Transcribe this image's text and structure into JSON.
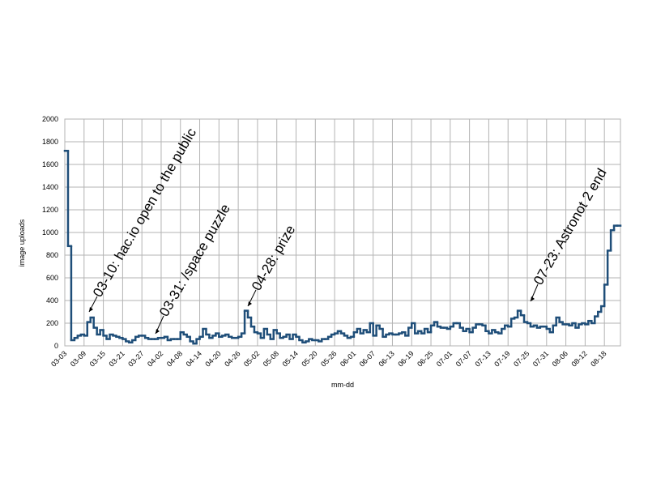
{
  "chart_data": {
    "type": "step",
    "x_label": "mm-dd",
    "y_label": "image uploads",
    "color": "#1f4e79",
    "grid": true,
    "ylim": [
      0,
      2000
    ],
    "yticks": [
      0,
      200,
      400,
      600,
      800,
      1000,
      1200,
      1400,
      1600,
      1800,
      2000
    ],
    "categories": [
      "03-03",
      null,
      null,
      null,
      null,
      null,
      "03-09",
      null,
      null,
      null,
      null,
      null,
      "03-15",
      null,
      null,
      null,
      null,
      null,
      "03-21",
      null,
      null,
      null,
      null,
      null,
      "03-27",
      null,
      null,
      null,
      null,
      null,
      "04-02",
      null,
      null,
      null,
      null,
      null,
      "04-08",
      null,
      null,
      null,
      null,
      null,
      "04-14",
      null,
      null,
      null,
      null,
      null,
      "04-20",
      null,
      null,
      null,
      null,
      null,
      "04-26",
      null,
      null,
      null,
      null,
      null,
      "05-02",
      null,
      null,
      null,
      null,
      null,
      "05-08",
      null,
      null,
      null,
      null,
      null,
      "05-14",
      null,
      null,
      null,
      null,
      null,
      "05-20",
      null,
      null,
      null,
      null,
      null,
      "05-26",
      null,
      null,
      null,
      null,
      null,
      "06-01",
      null,
      null,
      null,
      null,
      null,
      "06-07",
      null,
      null,
      null,
      null,
      null,
      "06-13",
      null,
      null,
      null,
      null,
      null,
      "06-19",
      null,
      null,
      null,
      null,
      null,
      "06-25",
      null,
      null,
      null,
      null,
      null,
      "07-01",
      null,
      null,
      null,
      null,
      null,
      "07-07",
      null,
      null,
      null,
      null,
      null,
      "07-13",
      null,
      null,
      null,
      null,
      null,
      "07-19",
      null,
      null,
      null,
      null,
      null,
      "07-25",
      null,
      null,
      null,
      null,
      null,
      "07-31",
      null,
      null,
      null,
      null,
      null,
      "08-06",
      null,
      null,
      null,
      null,
      null,
      "08-12",
      null,
      null,
      null,
      null,
      null,
      "08-18",
      null,
      null,
      null,
      null
    ],
    "values": [
      1720,
      880,
      50,
      70,
      90,
      100,
      90,
      210,
      250,
      160,
      100,
      140,
      90,
      60,
      100,
      90,
      80,
      70,
      60,
      40,
      30,
      50,
      80,
      90,
      90,
      70,
      60,
      60,
      60,
      70,
      70,
      80,
      50,
      60,
      60,
      60,
      120,
      100,
      80,
      40,
      20,
      60,
      80,
      150,
      100,
      70,
      90,
      110,
      80,
      90,
      100,
      80,
      70,
      70,
      80,
      110,
      310,
      250,
      170,
      120,
      110,
      70,
      150,
      100,
      60,
      140,
      110,
      70,
      80,
      100,
      60,
      100,
      80,
      50,
      30,
      40,
      60,
      50,
      50,
      40,
      60,
      60,
      80,
      100,
      110,
      130,
      110,
      90,
      70,
      80,
      120,
      150,
      110,
      140,
      120,
      200,
      90,
      180,
      150,
      80,
      100,
      110,
      100,
      100,
      110,
      120,
      90,
      160,
      200,
      110,
      130,
      110,
      150,
      120,
      180,
      210,
      170,
      160,
      160,
      150,
      170,
      200,
      200,
      160,
      130,
      150,
      120,
      160,
      190,
      190,
      180,
      130,
      110,
      140,
      120,
      110,
      150,
      180,
      170,
      240,
      250,
      310,
      270,
      210,
      200,
      170,
      180,
      160,
      170,
      170,
      150,
      120,
      180,
      250,
      210,
      190,
      190,
      180,
      200,
      160,
      190,
      200,
      190,
      220,
      200,
      260,
      300,
      350,
      540,
      840,
      1020,
      1060,
      1060
    ],
    "annotations": [
      "03-10: hac.io open to the public",
      "03-31: /space puzzle",
      "04-28: prize",
      "07-23: Astronot 2 end"
    ]
  }
}
